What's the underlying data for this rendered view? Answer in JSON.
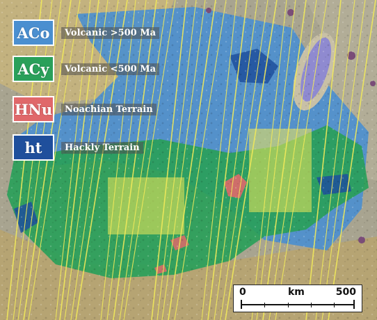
{
  "legend": {
    "items": [
      {
        "code": "ACo",
        "label": "Volcanic >500 Ma",
        "color": "#4a8fd0"
      },
      {
        "code": "ACy",
        "label": "Volcanic <500 Ma",
        "color": "#2aa05a"
      },
      {
        "code": "HNu",
        "label": "Noachian Terrain",
        "color": "#e0686a"
      },
      {
        "code": "ht",
        "label": "Hackly Terrain",
        "color": "#1f4f9c"
      }
    ]
  },
  "scalebar": {
    "start_label": "0",
    "unit_label": "km",
    "end_label": "500"
  },
  "colors": {
    "terrain_base": "#a8a490",
    "volcanic_old": "#4a8fd0",
    "volcanic_young": "#2aa05a",
    "noachian": "#e0686a",
    "hackly": "#1f4f9c",
    "track_lines": "#f2ea5a"
  }
}
